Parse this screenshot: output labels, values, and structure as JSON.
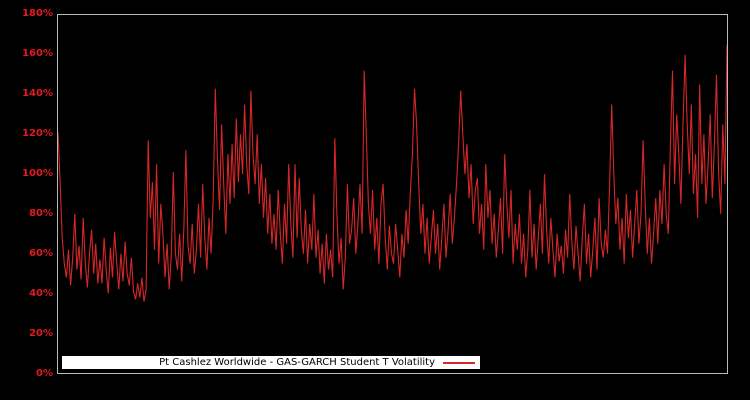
{
  "colors": {
    "background": "#000000",
    "line": "#d62728",
    "tick_label": "#e11b22",
    "plot_border": "#b9b9b9",
    "legend_background": "#ffffff",
    "legend_text": "#000000"
  },
  "legend": {
    "label": "Pt Cashlez Worldwide - GAS-GARCH Student T Volatility"
  },
  "axis": {
    "y_ticks": [
      {
        "label": "0%",
        "value": 0
      },
      {
        "label": "20%",
        "value": 20
      },
      {
        "label": "40%",
        "value": 40
      },
      {
        "label": "60%",
        "value": 60
      },
      {
        "label": "80%",
        "value": 80
      },
      {
        "label": "100%",
        "value": 100
      },
      {
        "label": "120%",
        "value": 120
      },
      {
        "label": "140%",
        "value": 140
      },
      {
        "label": "160%",
        "value": 160
      },
      {
        "label": "180%",
        "value": 180
      }
    ]
  },
  "chart_data": {
    "type": "line",
    "title": "",
    "xlabel": "",
    "ylabel": "",
    "unit": "percent",
    "ylim": [
      0,
      180
    ],
    "y_tick_labels": [
      "0%",
      "20%",
      "40%",
      "60%",
      "80%",
      "100%",
      "120%",
      "140%",
      "160%",
      "180%"
    ],
    "x_tick_labels": [],
    "grid": false,
    "legend_position": "inside-bottom-left",
    "series": [
      {
        "name": "Pt Cashlez Worldwide - GAS-GARCH Student T Volatility",
        "color": "#d62728",
        "values": [
          121,
          96,
          68,
          55,
          48,
          62,
          44,
          58,
          80,
          52,
          64,
          47,
          78,
          55,
          43,
          60,
          72,
          50,
          65,
          45,
          57,
          45,
          68,
          52,
          40,
          63,
          48,
          71,
          55,
          42,
          60,
          46,
          66,
          50,
          44,
          58,
          41,
          37,
          45,
          38,
          48,
          36,
          42,
          117,
          78,
          96,
          62,
          105,
          55,
          85,
          70,
          48,
          65,
          42,
          58,
          101,
          60,
          52,
          70,
          46,
          72,
          112,
          64,
          55,
          75,
          50,
          62,
          85,
          58,
          95,
          68,
          52,
          78,
          60,
          88,
          143,
          108,
          82,
          125,
          95,
          70,
          110,
          85,
          115,
          88,
          128,
          96,
          120,
          100,
          135,
          105,
          90,
          142,
          110,
          95,
          120,
          85,
          105,
          78,
          98,
          70,
          90,
          65,
          80,
          62,
          92,
          70,
          55,
          85,
          65,
          105,
          75,
          58,
          105,
          68,
          98,
          72,
          60,
          82,
          55,
          75,
          62,
          90,
          58,
          72,
          50,
          65,
          45,
          70,
          52,
          62,
          48,
          118,
          80,
          55,
          68,
          42,
          58,
          95,
          65,
          72,
          88,
          60,
          75,
          95,
          70,
          152,
          120,
          85,
          70,
          92,
          62,
          78,
          55,
          85,
          95,
          68,
          52,
          74,
          60,
          55,
          75,
          62,
          48,
          70,
          58,
          82,
          65,
          90,
          110,
          143,
          125,
          95,
          70,
          85,
          60,
          78,
          55,
          68,
          82,
          60,
          75,
          52,
          68,
          85,
          58,
          72,
          90,
          65,
          78,
          95,
          115,
          142,
          120,
          100,
          115,
          88,
          105,
          75,
          92,
          98,
          70,
          85,
          62,
          105,
          78,
          92,
          65,
          80,
          58,
          72,
          88,
          60,
          110,
          85,
          68,
          92,
          55,
          75,
          62,
          80,
          55,
          70,
          48,
          62,
          92,
          58,
          75,
          52,
          68,
          85,
          60,
          100,
          72,
          55,
          78,
          62,
          48,
          70,
          56,
          64,
          50,
          72,
          58,
          90,
          66,
          52,
          74,
          60,
          46,
          68,
          85,
          55,
          70,
          48,
          62,
          78,
          52,
          88,
          65,
          58,
          72,
          60,
          95,
          135,
          100,
          75,
          88,
          62,
          78,
          55,
          90,
          68,
          82,
          58,
          75,
          92,
          65,
          80,
          117,
          85,
          60,
          78,
          55,
          70,
          88,
          65,
          92,
          75,
          105,
          80,
          70,
          115,
          152,
          95,
          130,
          110,
          85,
          125,
          160,
          125,
          100,
          135,
          90,
          110,
          78,
          145,
          95,
          120,
          85,
          105,
          130,
          88,
          115,
          150,
          100,
          80,
          125,
          95,
          165
        ]
      }
    ]
  }
}
